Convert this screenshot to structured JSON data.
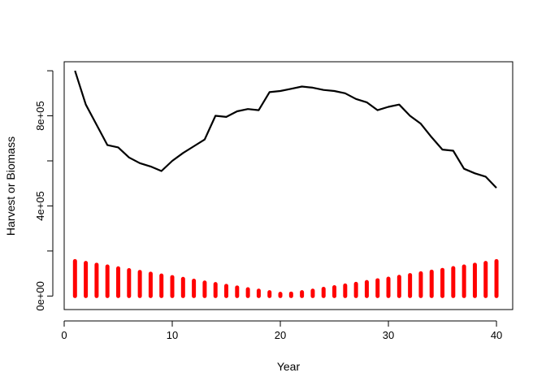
{
  "chart_data": {
    "type": "line",
    "title": "",
    "xlabel": "Year",
    "ylabel": "Harvest or Biomass",
    "xlim": [
      0,
      41.5
    ],
    "ylim": [
      -60000,
      1040000
    ],
    "x_ticks": [
      0,
      10,
      20,
      30,
      40
    ],
    "x_tick_labels": [
      "0",
      "10",
      "20",
      "30",
      "40"
    ],
    "y_ticks": [
      0,
      400000,
      800000
    ],
    "y_tick_labels": [
      "0e+00",
      "4e+05",
      "8e+05"
    ],
    "y_minor_ticks": [
      200000,
      600000,
      1000000
    ],
    "grid": false,
    "legend": "none",
    "series": [
      {
        "type": "line",
        "color": "#000000",
        "x": [
          1,
          2,
          3,
          4,
          5,
          6,
          7,
          8,
          9,
          10,
          11,
          12,
          13,
          14,
          15,
          16,
          17,
          18,
          19,
          20,
          21,
          22,
          23,
          24,
          25,
          26,
          27,
          28,
          29,
          30,
          31,
          32,
          33,
          34,
          35,
          36,
          37,
          38,
          39,
          40
        ],
        "values": [
          1000000,
          850000,
          760000,
          670000,
          660000,
          615000,
          590000,
          575000,
          555000,
          600000,
          635000,
          665000,
          695000,
          800000,
          795000,
          820000,
          830000,
          825000,
          905000,
          910000,
          920000,
          930000,
          925000,
          915000,
          910000,
          900000,
          875000,
          860000,
          825000,
          840000,
          850000,
          800000,
          765000,
          705000,
          650000,
          645000,
          565000,
          545000,
          530000,
          480000
        ]
      },
      {
        "type": "bar",
        "color": "#ff0000",
        "x": [
          1,
          2,
          3,
          4,
          5,
          6,
          7,
          8,
          9,
          10,
          11,
          12,
          13,
          14,
          15,
          16,
          17,
          18,
          19,
          20,
          21,
          22,
          23,
          24,
          25,
          26,
          27,
          28,
          29,
          30,
          31,
          32,
          33,
          34,
          35,
          36,
          37,
          38,
          39,
          40
        ],
        "values": [
          155000,
          147000,
          139000,
          131000,
          123000,
          115000,
          107000,
          99000,
          91000,
          84000,
          76000,
          68000,
          60000,
          53000,
          45000,
          38000,
          30000,
          24000,
          17000,
          10000,
          11000,
          17000,
          24000,
          32000,
          39000,
          47000,
          54000,
          62000,
          70000,
          77000,
          85000,
          93000,
          101000,
          108000,
          116000,
          124000,
          131000,
          139000,
          147000,
          155000
        ]
      }
    ]
  }
}
